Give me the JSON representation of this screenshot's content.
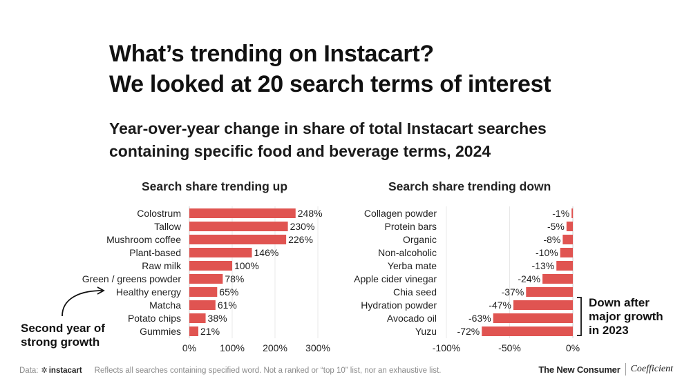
{
  "title_line1": "What’s trending on Instacart?",
  "title_line2": "We looked at 20 search terms of interest",
  "subtitle_line1": "Year-over-year change in share of total Instacart searches",
  "subtitle_line2": "containing specific food and beverage terms, 2024",
  "annotations": {
    "left_line1": "Second year of",
    "left_line2": "strong growth",
    "right_line1": "Down after",
    "right_line2": "major growth",
    "right_line3": "in 2023"
  },
  "footer": {
    "data_label": "Data:",
    "brand": "instacart",
    "note": "Reflects all searches containing specified word. Not a ranked or “top 10” list, nor an exhaustive list.",
    "logo1": "The New Consumer",
    "logo2": "Coefficient"
  },
  "colors": {
    "bar": "#e05451",
    "grid": "#e8e8e8",
    "axis": "#cfcfcf"
  },
  "chart_data": [
    {
      "type": "bar",
      "orientation": "horizontal",
      "title": "Search share trending up",
      "categories": [
        "Colostrum",
        "Tallow",
        "Mushroom coffee",
        "Plant-based",
        "Raw milk",
        "Green / greens powder",
        "Healthy energy",
        "Matcha",
        "Potato chips",
        "Gummies"
      ],
      "values": [
        248,
        230,
        226,
        146,
        100,
        78,
        65,
        61,
        38,
        21
      ],
      "value_labels": [
        "248%",
        "230%",
        "226%",
        "146%",
        "100%",
        "78%",
        "65%",
        "61%",
        "38%",
        "21%"
      ],
      "xlim": [
        0,
        300
      ],
      "x_ticks": [
        0,
        100,
        200,
        300
      ],
      "x_tick_labels": [
        "0%",
        "100%",
        "200%",
        "300%"
      ],
      "grid": true
    },
    {
      "type": "bar",
      "orientation": "horizontal",
      "title": "Search share trending down",
      "categories": [
        "Collagen powder",
        "Protein bars",
        "Organic",
        "Non-alcoholic",
        "Yerba mate",
        "Apple cider vinegar",
        "Chia seed",
        "Hydration powder",
        "Avocado oil",
        "Yuzu"
      ],
      "values": [
        -1,
        -5,
        -8,
        -10,
        -13,
        -24,
        -37,
        -47,
        -63,
        -72
      ],
      "value_labels": [
        "-1%",
        "-5%",
        "-8%",
        "-10%",
        "-13%",
        "-24%",
        "-37%",
        "-47%",
        "-63%",
        "-72%"
      ],
      "xlim": [
        -100,
        0
      ],
      "x_ticks": [
        -100,
        -50,
        0
      ],
      "x_tick_labels": [
        "-100%",
        "-50%",
        "0%"
      ],
      "grid": true
    }
  ]
}
